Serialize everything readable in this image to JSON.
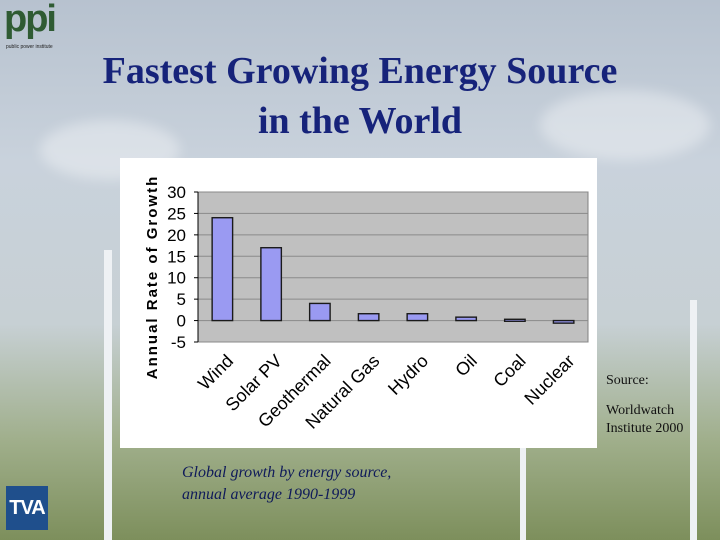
{
  "logos": {
    "ppi_text": "ppi",
    "ppi_subtext": "public power institute",
    "tva_text": "TVA"
  },
  "slide": {
    "title_line1": "Fastest Growing Energy Source",
    "title_line2": "in the World",
    "caption_line1": "Global growth by energy  source,",
    "caption_line2": "annual average 1990-1999",
    "source_label": "Source:",
    "source_line1": "Worldwatch",
    "source_line2": "Institute 2000"
  },
  "colors": {
    "title": "#16237a",
    "bar_fill": "#9a9af2",
    "bar_stroke": "#1a1a1a",
    "plot_bg": "#c0c0c0"
  },
  "chart_data": {
    "type": "bar",
    "title": "",
    "xlabel": "",
    "ylabel": "Annual Rate of Growth",
    "ylim": [
      -5,
      30
    ],
    "yticks": [
      -5,
      0,
      5,
      10,
      15,
      20,
      25,
      30
    ],
    "grid": true,
    "categories": [
      "Wind",
      "Solar PV",
      "Geothermal",
      "Natural Gas",
      "Hydro",
      "Oil",
      "Coal",
      "Nuclear"
    ],
    "values": [
      24,
      17,
      4,
      1.6,
      1.6,
      0.8,
      0.3,
      -0.6
    ]
  }
}
